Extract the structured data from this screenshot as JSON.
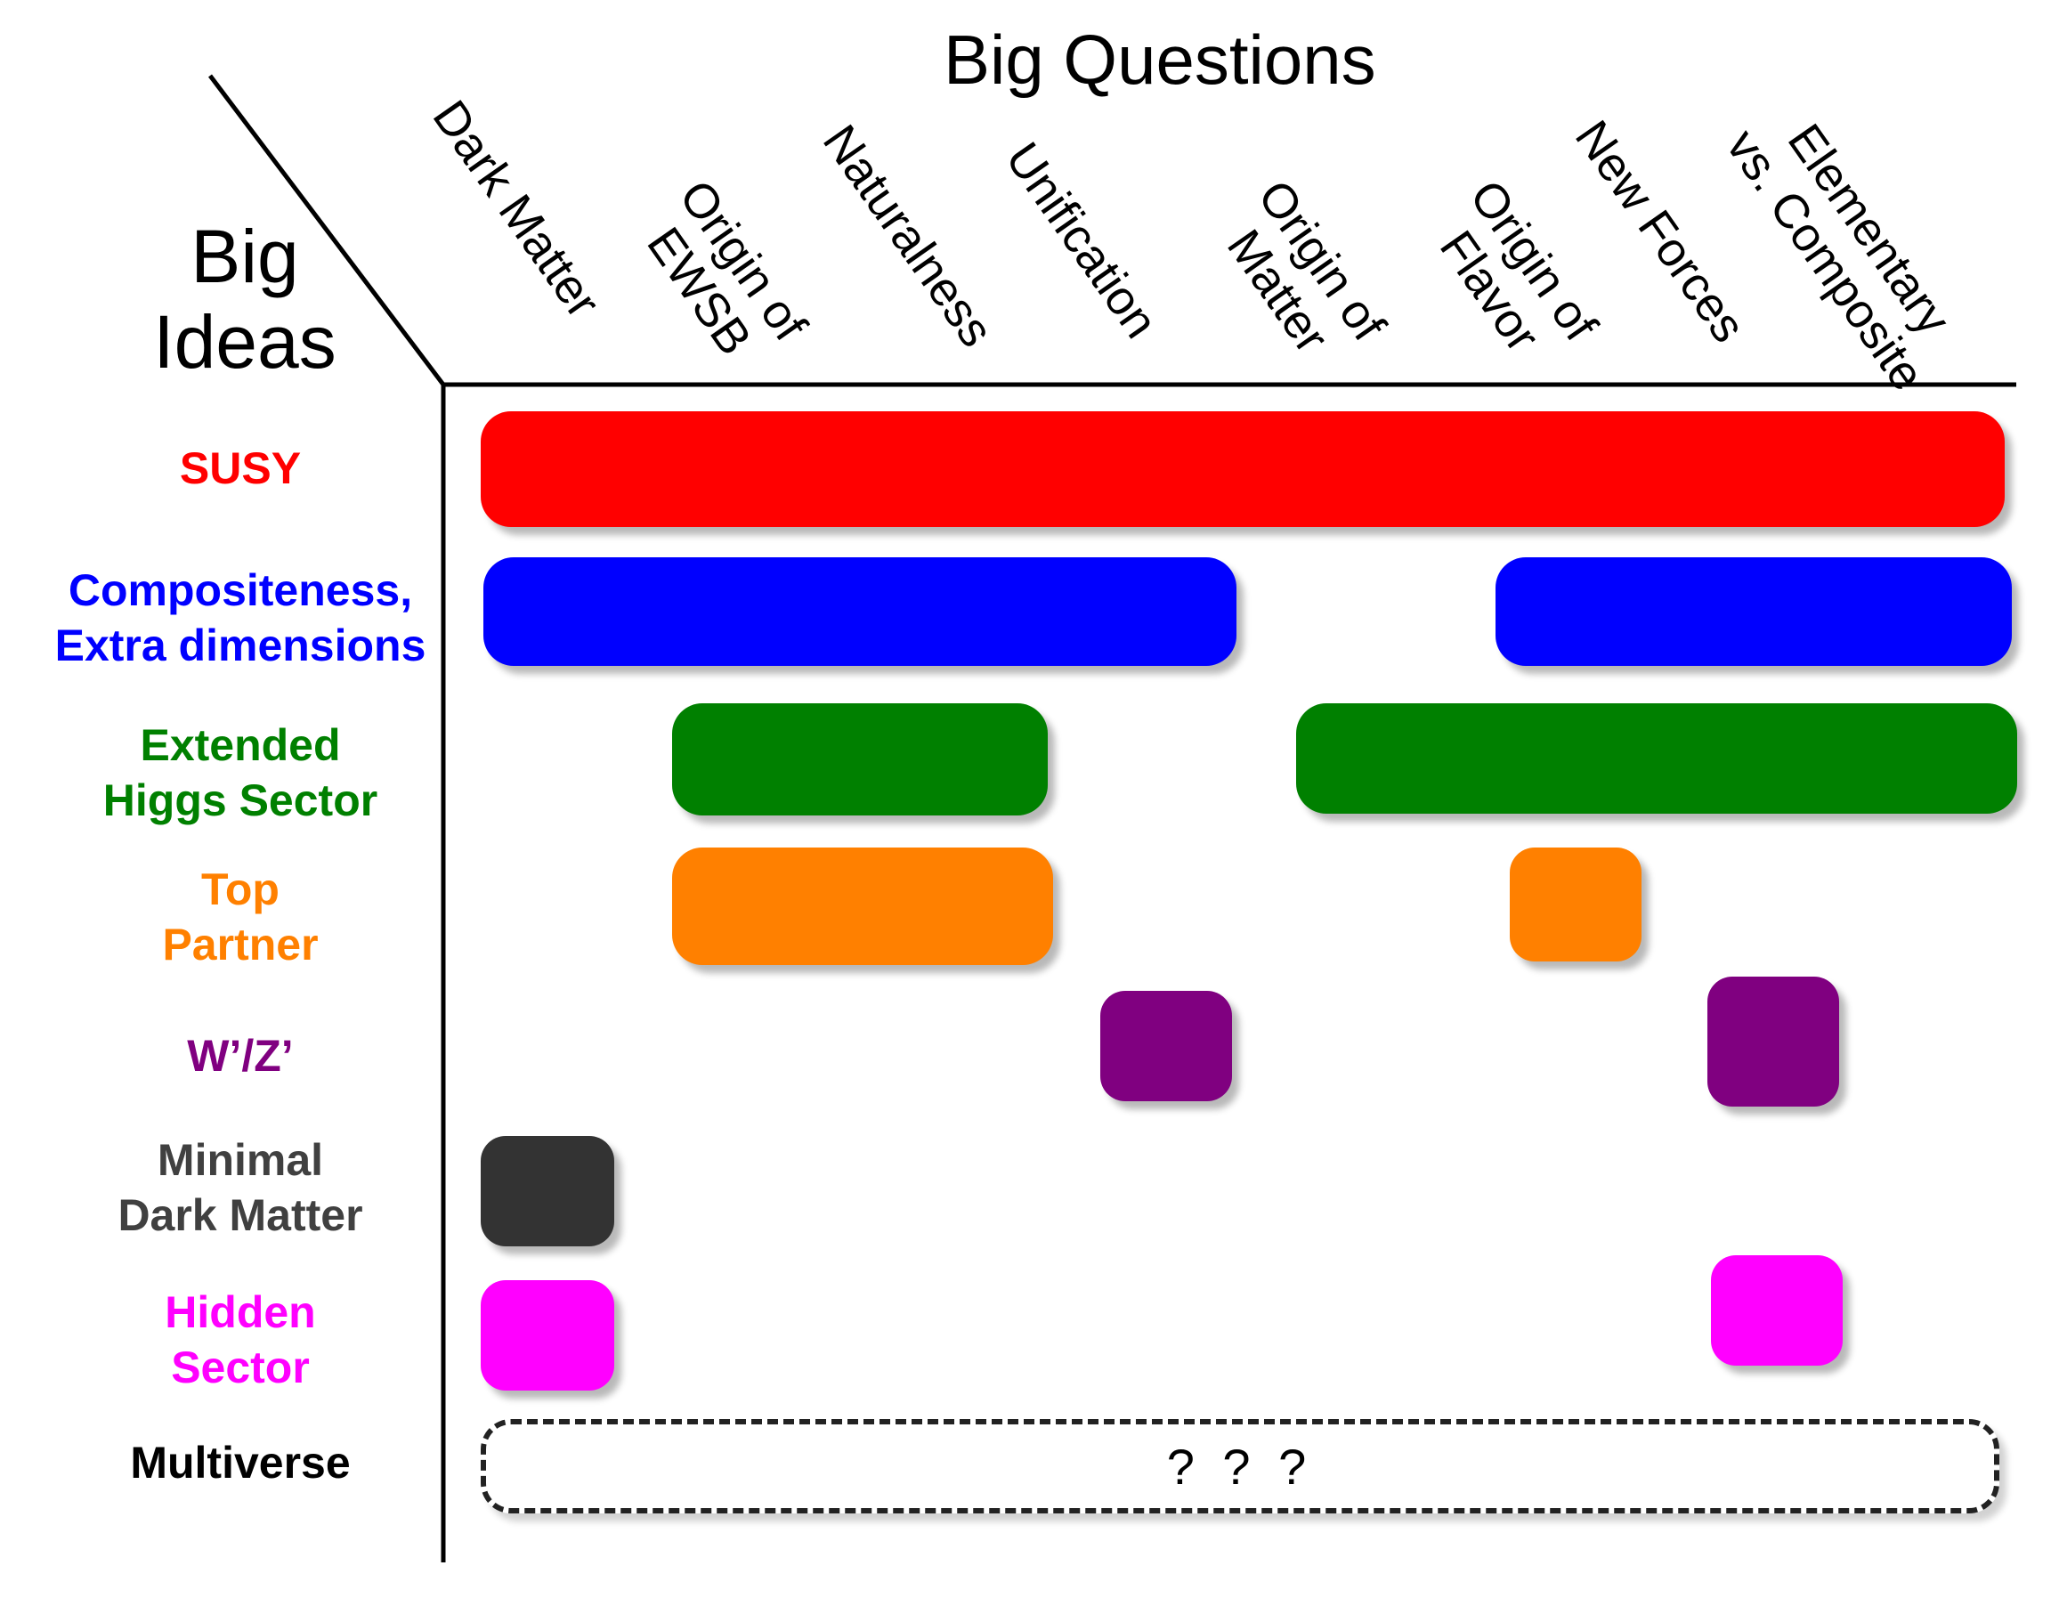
{
  "title": "Big Questions",
  "corner_label": "Big\nIdeas",
  "questions": [
    {
      "label": "Dark Matter"
    },
    {
      "label": "Origin of\nEWSB"
    },
    {
      "label": "Naturalness"
    },
    {
      "label": "Unification"
    },
    {
      "label": "Origin of\nMatter"
    },
    {
      "label": "Origin of\nFlavor"
    },
    {
      "label": "New Forces"
    },
    {
      "label": "Elementary\nvs. Composite"
    }
  ],
  "ideas": [
    {
      "label": "SUSY",
      "color": "#ff0000"
    },
    {
      "label": "Compositeness,\nExtra dimensions",
      "color": "#0000ff"
    },
    {
      "label": "Extended\nHiggs Sector",
      "color": "#008000"
    },
    {
      "label": "Top\nPartner",
      "color": "#ff8000"
    },
    {
      "label": "W’/Z’",
      "color": "#800080"
    },
    {
      "label": "Minimal\nDark Matter",
      "color": "#404040"
    },
    {
      "label": "Hidden\nSector",
      "color": "#ff00ff"
    },
    {
      "label": "Multiverse",
      "color": "#000000"
    }
  ],
  "multiverse_marker": "? ? ?"
}
